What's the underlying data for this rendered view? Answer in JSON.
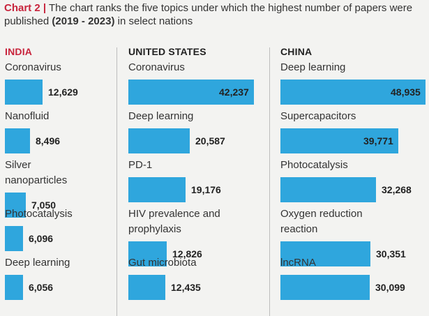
{
  "header": {
    "chart_number": "Chart 2",
    "separator": "|",
    "text_part1": "The chart ranks the five topics under which the highest number of papers were published",
    "years": "(2019 - 2023)",
    "text_part2": "in select nations"
  },
  "colors": {
    "bar": "#2fa6dd",
    "india_heading": "#c8243c",
    "accent_title": "#c8243c",
    "text": "#222222"
  },
  "chart_data": [
    {
      "type": "bar",
      "title": "INDIA",
      "categories": [
        "Coronavirus",
        "Nanofluid",
        "Silver nanoparticles",
        "Photocatalysis",
        "Deep learning"
      ],
      "labels_display": [
        "Coronavirus",
        "Nanofluid",
        "Silver\nnanoparticles",
        "Photocatalysis",
        "Deep learning"
      ],
      "values": [
        12629,
        8496,
        7050,
        6096,
        6056
      ],
      "value_labels": [
        "12,629",
        "8,496",
        "7,050",
        "6,096",
        "6,056"
      ]
    },
    {
      "type": "bar",
      "title": "UNITED STATES",
      "categories": [
        "Coronavirus",
        "Deep learning",
        "PD-1",
        "HIV prevalence and prophylaxis",
        "Gut microbiota"
      ],
      "labels_display": [
        "Coronavirus",
        "Deep learning",
        "PD-1",
        "HIV prevalence and\nprophylaxis",
        "Gut microbiota"
      ],
      "values": [
        42237,
        20587,
        19176,
        12826,
        12435
      ],
      "value_labels": [
        "42,237",
        "20,587",
        "19,176",
        "12,826",
        "12,435"
      ]
    },
    {
      "type": "bar",
      "title": "CHINA",
      "categories": [
        "Deep learning",
        "Supercapacitors",
        "Photocatalysis",
        "Oxygen reduction reaction",
        "lncRNA"
      ],
      "labels_display": [
        "Deep learning",
        "Supercapacitors",
        "Photocatalysis",
        "Oxygen reduction\nreaction",
        "lncRNA"
      ],
      "values": [
        48935,
        39771,
        32268,
        30351,
        30099
      ],
      "value_labels": [
        "48,935",
        "39,771",
        "32,268",
        "30,351",
        "30,099"
      ]
    }
  ]
}
